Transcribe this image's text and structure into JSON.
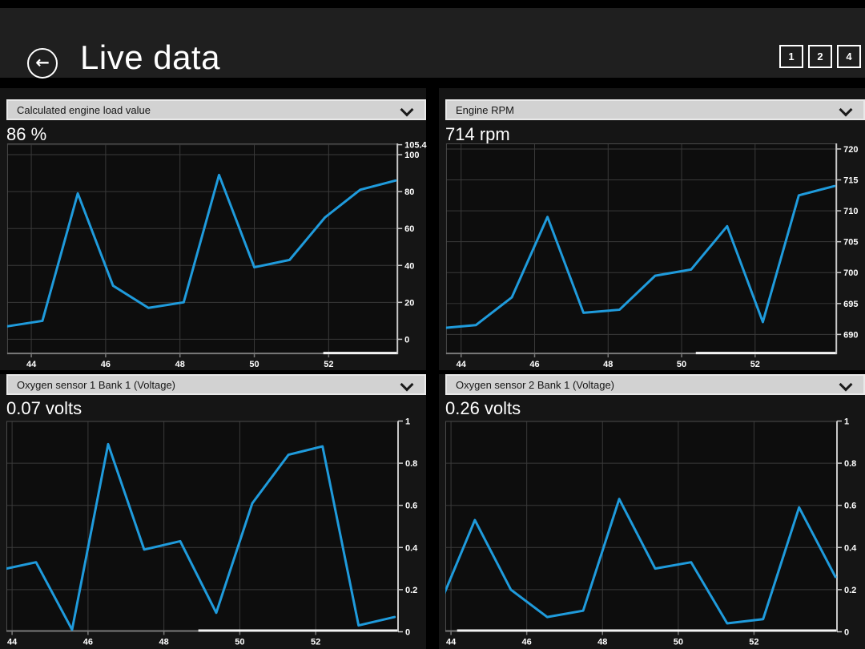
{
  "app": {
    "title": "Live data"
  },
  "header": {
    "back_glyph": "←",
    "view_buttons": [
      {
        "label": "1"
      },
      {
        "label": "2"
      },
      {
        "label": "4"
      }
    ]
  },
  "colors": {
    "accent_line": "#1f9bdc",
    "header_bg": "#1f1f1f",
    "cell_bg": "#151515",
    "plot_bg": "#0d0d0d",
    "grid": "#3a3a3a",
    "plot_border": "#4a4a4a",
    "axis_right": "#c9c9c9",
    "axis_bottom": "#7a7a7a",
    "scroll_indicator": "#f5f5f5",
    "dropdown_bg": "#d2d2d2"
  },
  "chart_data": [
    {
      "type": "line",
      "parameter": "Calculated engine load value",
      "current_value": "86 %",
      "x": [
        43.35,
        44.3,
        45.25,
        46.2,
        47.15,
        48.1,
        49.05,
        50.0,
        50.95,
        51.9,
        52.85,
        53.8
      ],
      "y": [
        7,
        10,
        79,
        29,
        17,
        20,
        89,
        39,
        43,
        66,
        81,
        86
      ],
      "xlim": [
        43.35,
        53.85
      ],
      "ylim": [
        -8.1,
        106.1
      ],
      "x_ticks": [
        44,
        46,
        48,
        50,
        52
      ],
      "y_ticks": [
        0,
        20,
        40,
        60,
        80,
        100,
        105.4
      ],
      "scrollbar_start_frac": 0.81,
      "grid": true,
      "legend": "none"
    },
    {
      "type": "line",
      "parameter": "Engine RPM",
      "current_value": "714 rpm",
      "x": [
        43.43,
        44.4,
        45.38,
        46.35,
        47.33,
        48.31,
        49.28,
        50.26,
        51.24,
        52.21,
        53.19,
        54.16
      ],
      "y": [
        691,
        691.5,
        696,
        709,
        693.5,
        694,
        699.5,
        700.5,
        707.5,
        692,
        712.5,
        714
      ],
      "xlim": [
        43.59,
        54.21
      ],
      "ylim": [
        686.8,
        720.9
      ],
      "x_ticks": [
        44,
        46,
        48,
        50,
        52
      ],
      "y_ticks": [
        690,
        695,
        700,
        705,
        710,
        715,
        720
      ],
      "scrollbar_start_frac": 0.64,
      "grid": true,
      "legend": "none"
    },
    {
      "type": "line",
      "parameter": "Oxygen sensor 1 Bank 1 (Voltage)",
      "current_value": "0.07 volts",
      "x": [
        43.85,
        44.63,
        45.58,
        46.53,
        47.48,
        48.43,
        49.38,
        50.33,
        51.28,
        52.18,
        53.13,
        54.08
      ],
      "y": [
        0.3,
        0.33,
        0.01,
        0.89,
        0.39,
        0.43,
        0.09,
        0.61,
        0.84,
        0.88,
        0.03,
        0.07
      ],
      "xlim": [
        43.85,
        54.17
      ],
      "ylim": [
        0,
        1
      ],
      "x_ticks": [
        44,
        46,
        48,
        50,
        52
      ],
      "y_ticks": [
        0,
        0.2,
        0.4,
        0.6,
        0.8,
        1
      ],
      "scrollbar_start_frac": 0.49,
      "grid": true,
      "legend": "none"
    },
    {
      "type": "line",
      "parameter": "Oxygen sensor 2 Bank 1 (Voltage)",
      "current_value": "0.26 volts",
      "x": [
        43.68,
        44.63,
        45.58,
        46.54,
        47.49,
        48.44,
        49.39,
        50.34,
        51.29,
        52.24,
        53.19,
        54.15
      ],
      "y": [
        0.12,
        0.53,
        0.2,
        0.07,
        0.1,
        0.63,
        0.3,
        0.33,
        0.04,
        0.06,
        0.59,
        0.26
      ],
      "xlim": [
        43.85,
        54.19
      ],
      "ylim": [
        0,
        1
      ],
      "x_ticks": [
        44,
        46,
        48,
        50,
        52
      ],
      "y_ticks": [
        0,
        0.2,
        0.4,
        0.6,
        0.8,
        1
      ],
      "scrollbar_start_frac": 0.03,
      "grid": true,
      "legend": "none"
    }
  ]
}
